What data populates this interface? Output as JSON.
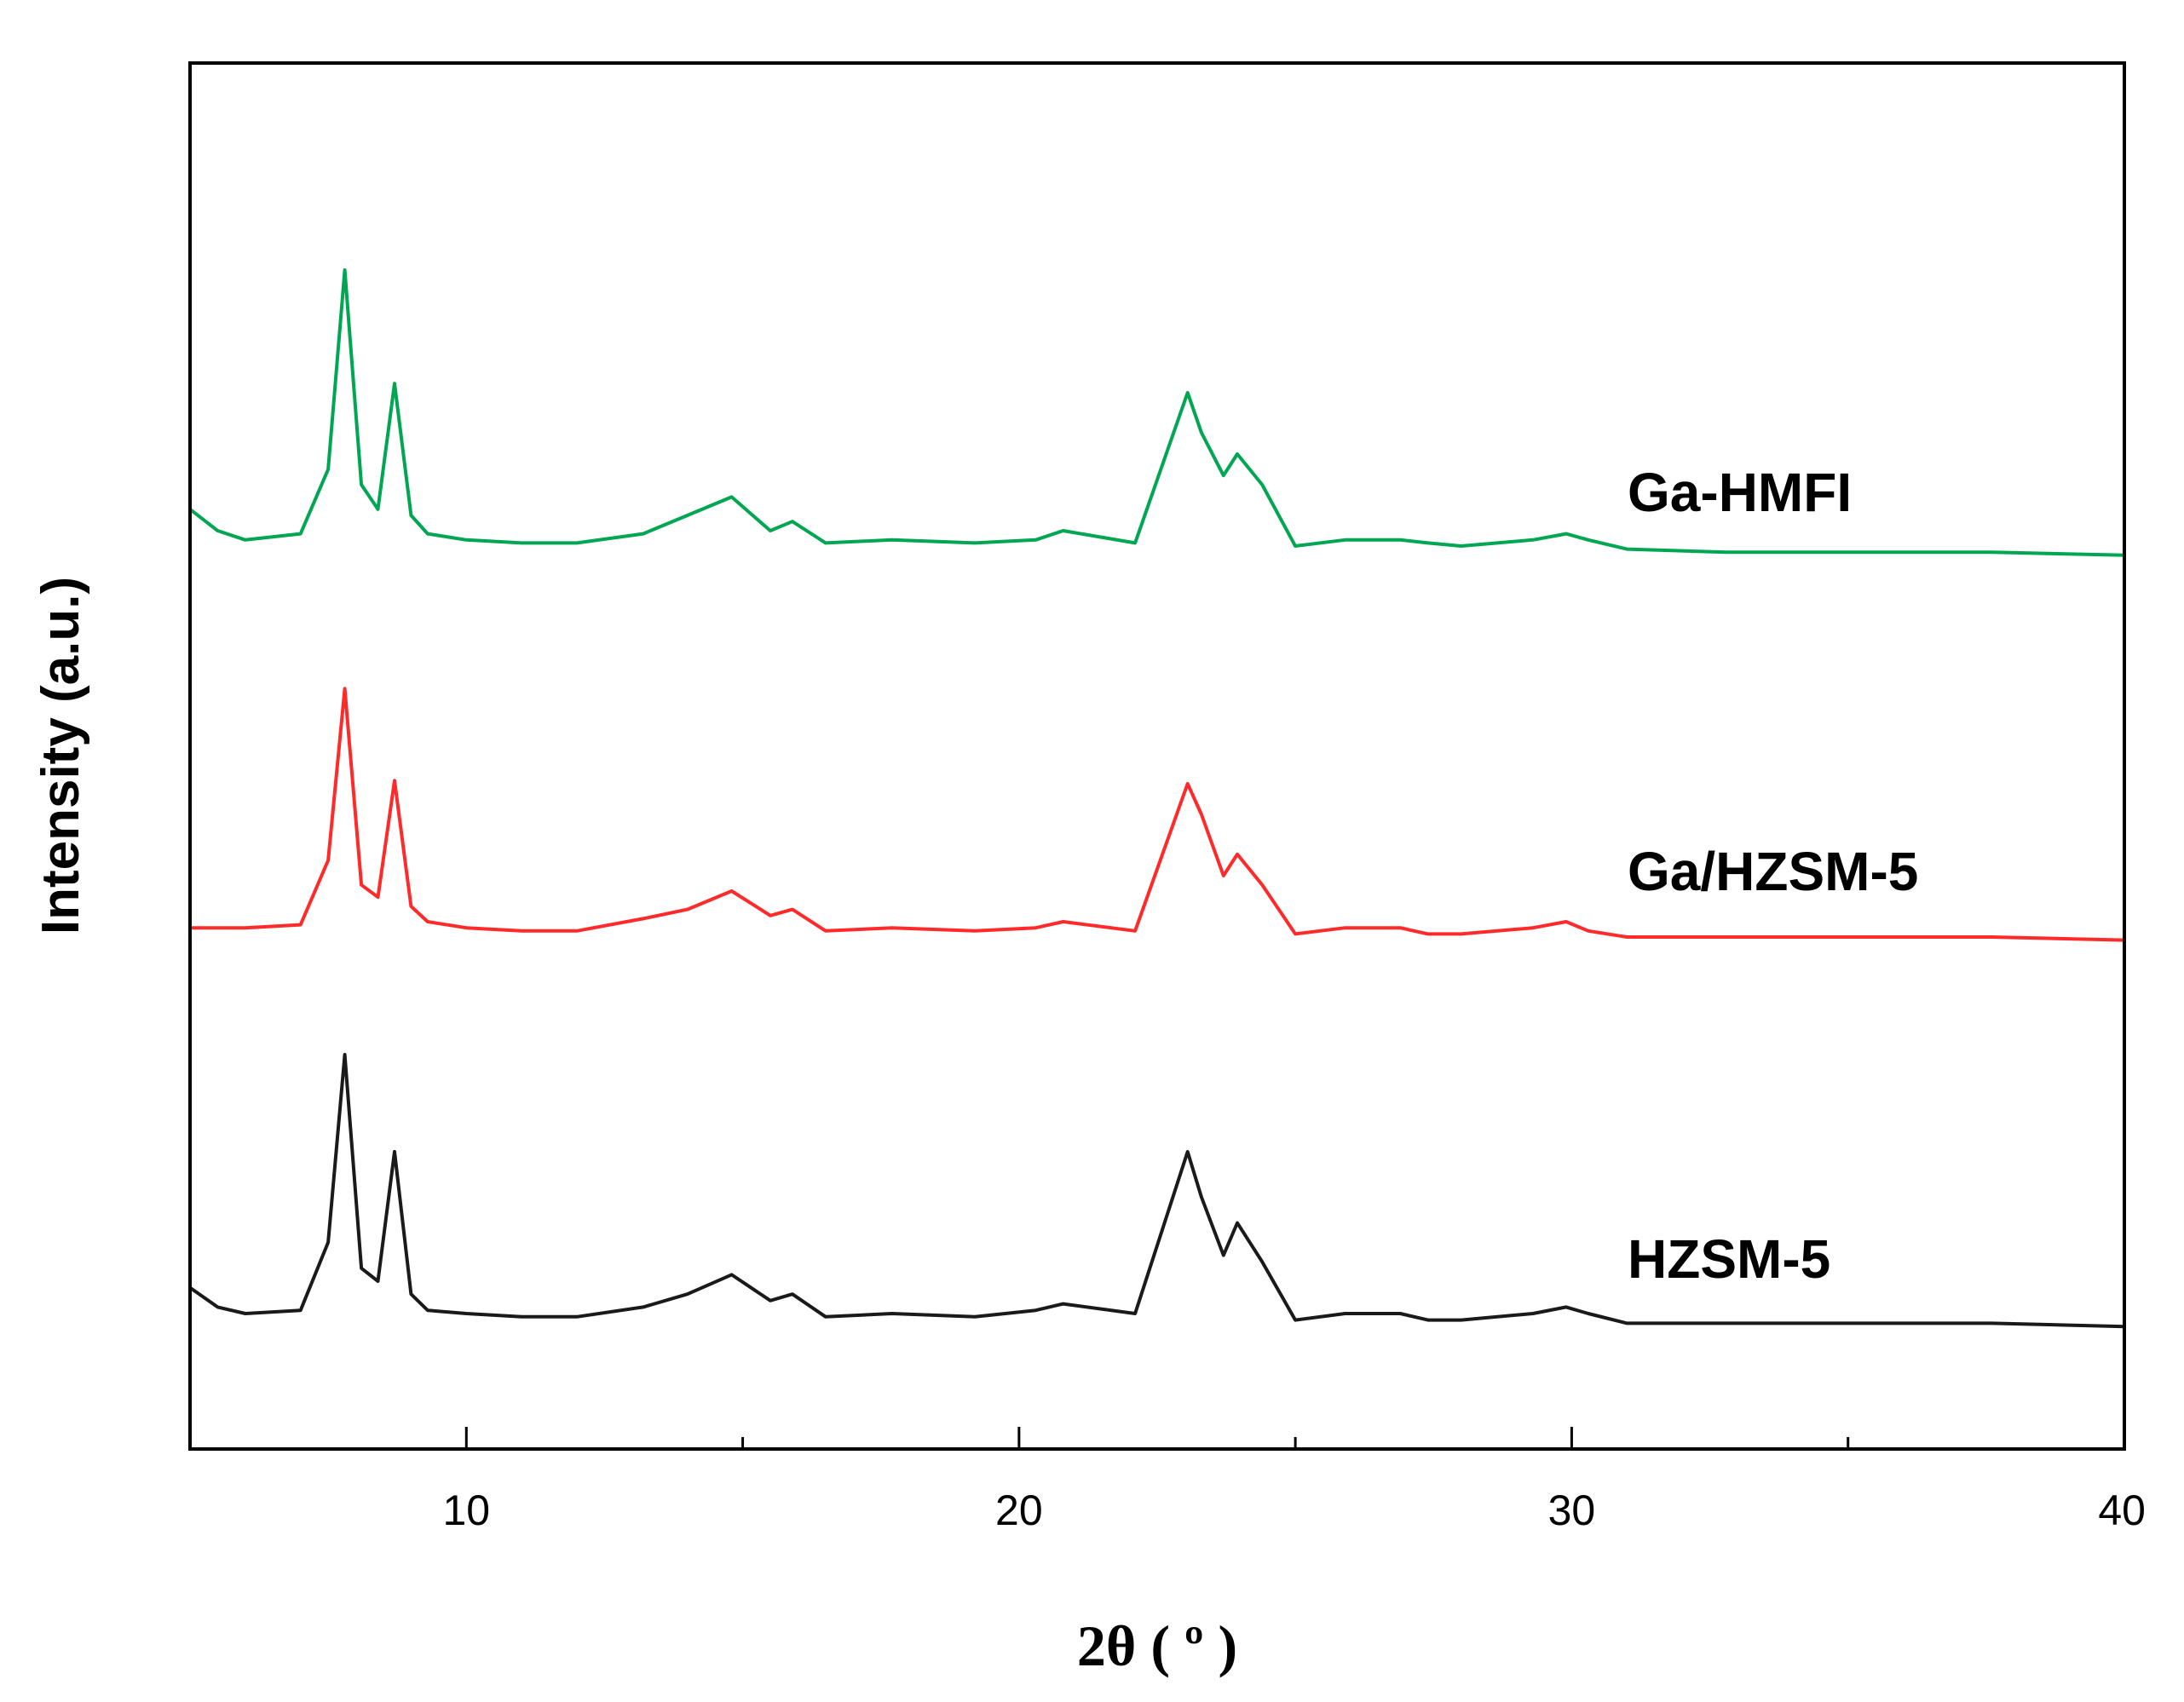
{
  "chart_data": {
    "type": "line",
    "title": "",
    "xlabel": "2θ ( º )",
    "ylabel": "Intensity (a.u.)",
    "xlim": [
      5,
      40
    ],
    "xticks": [
      10,
      20,
      30,
      40
    ],
    "y_ticks_shown": false,
    "grid": false,
    "legend": "none (series labelled inline, right side above each curve)",
    "series": [
      {
        "name": "Ga-HMFI",
        "color": "#00a651",
        "x": [
          5.0,
          5.5,
          6.0,
          7.0,
          7.5,
          7.8,
          8.1,
          8.4,
          8.7,
          9.0,
          9.3,
          10.0,
          11.0,
          12.0,
          13.2,
          14.0,
          14.8,
          15.5,
          15.9,
          16.5,
          17.7,
          19.2,
          20.3,
          20.8,
          22.1,
          23.05,
          23.3,
          23.7,
          23.95,
          24.4,
          25.0,
          25.9,
          26.9,
          27.4,
          28.0,
          29.3,
          29.9,
          30.3,
          31.0,
          32.8,
          34.5,
          36.2,
          37.6,
          40.0
        ],
        "y": [
          0.22,
          0.15,
          0.12,
          0.14,
          0.35,
          1.0,
          0.3,
          0.22,
          0.63,
          0.2,
          0.14,
          0.12,
          0.11,
          0.11,
          0.14,
          0.2,
          0.26,
          0.15,
          0.18,
          0.11,
          0.12,
          0.11,
          0.12,
          0.15,
          0.11,
          0.6,
          0.47,
          0.33,
          0.4,
          0.3,
          0.1,
          0.12,
          0.12,
          0.11,
          0.1,
          0.12,
          0.14,
          0.12,
          0.09,
          0.08,
          0.08,
          0.08,
          0.08,
          0.07
        ]
      },
      {
        "name": "Ga/HZSM-5",
        "color": "#ff2a2a",
        "x": [
          5.0,
          6.0,
          7.0,
          7.5,
          7.8,
          8.1,
          8.4,
          8.7,
          9.0,
          9.3,
          10.0,
          11.0,
          12.0,
          13.2,
          14.0,
          14.8,
          15.5,
          15.9,
          16.5,
          17.7,
          19.2,
          20.3,
          20.8,
          22.1,
          23.05,
          23.3,
          23.7,
          23.95,
          24.4,
          25.0,
          25.9,
          26.9,
          27.4,
          28.0,
          29.3,
          29.9,
          30.3,
          31.0,
          32.8,
          34.5,
          36.2,
          37.6,
          40.0
        ],
        "y": [
          0.08,
          0.08,
          0.09,
          0.3,
          0.86,
          0.22,
          0.18,
          0.56,
          0.15,
          0.1,
          0.08,
          0.07,
          0.07,
          0.11,
          0.14,
          0.2,
          0.12,
          0.14,
          0.07,
          0.08,
          0.07,
          0.08,
          0.1,
          0.07,
          0.55,
          0.45,
          0.25,
          0.32,
          0.22,
          0.06,
          0.08,
          0.08,
          0.06,
          0.06,
          0.08,
          0.1,
          0.07,
          0.05,
          0.05,
          0.05,
          0.05,
          0.05,
          0.04
        ]
      },
      {
        "name": "HZSM-5",
        "color": "#1a1a1a",
        "x": [
          5.0,
          5.5,
          6.0,
          7.0,
          7.5,
          7.8,
          8.1,
          8.4,
          8.7,
          9.0,
          9.3,
          10.0,
          11.0,
          12.0,
          13.2,
          14.0,
          14.8,
          15.5,
          15.9,
          16.5,
          17.7,
          19.2,
          20.3,
          20.8,
          22.1,
          23.05,
          23.3,
          23.7,
          23.95,
          24.4,
          25.0,
          25.9,
          26.9,
          27.4,
          28.0,
          29.3,
          29.9,
          30.3,
          31.0,
          32.8,
          34.5,
          36.2,
          37.6,
          40.0
        ],
        "y": [
          0.18,
          0.12,
          0.1,
          0.11,
          0.32,
          0.9,
          0.24,
          0.2,
          0.6,
          0.16,
          0.11,
          0.1,
          0.09,
          0.09,
          0.12,
          0.16,
          0.22,
          0.14,
          0.16,
          0.09,
          0.1,
          0.09,
          0.11,
          0.13,
          0.1,
          0.6,
          0.46,
          0.28,
          0.38,
          0.26,
          0.08,
          0.1,
          0.1,
          0.08,
          0.08,
          0.1,
          0.12,
          0.1,
          0.07,
          0.07,
          0.07,
          0.07,
          0.07,
          0.06
        ]
      }
    ]
  }
}
